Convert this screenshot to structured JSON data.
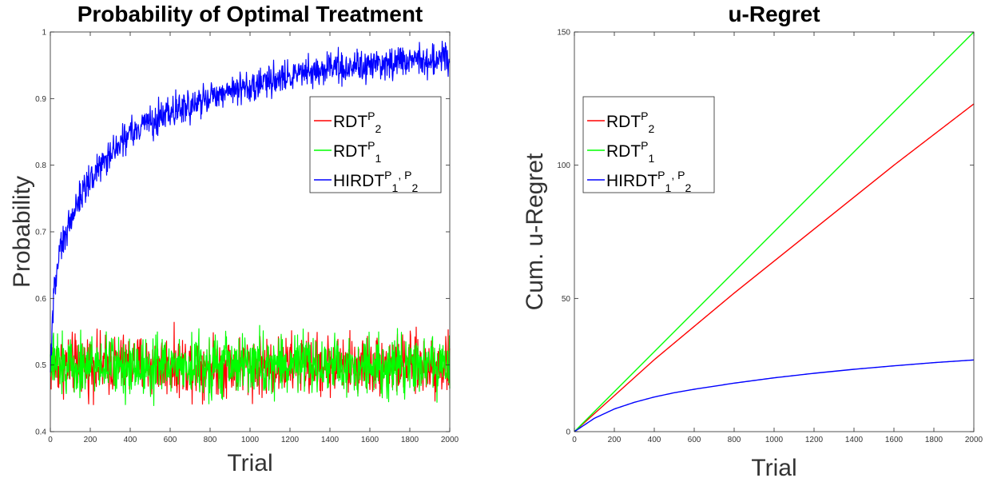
{
  "chart_data": [
    {
      "type": "line",
      "title": "Probability of Optimal Treatment",
      "xlabel": "Trial",
      "ylabel": "Probability",
      "xlim": [
        0,
        2000
      ],
      "ylim": [
        0.4,
        1.0
      ],
      "xticks": [
        "0",
        "200",
        "400",
        "600",
        "800",
        "1000",
        "1200",
        "1400",
        "1600",
        "1800",
        "2000"
      ],
      "yticks": [
        "0.4",
        "0.5",
        "0.6",
        "0.7",
        "0.8",
        "0.9",
        "1"
      ],
      "grid": false,
      "legend_position": "right-middle",
      "legend": [
        {
          "base": "RDT",
          "sup": "P",
          "sub": "2",
          "tail": "",
          "color": "#ff0000"
        },
        {
          "base": "RDT",
          "sup": "P",
          "sub": "1",
          "tail": "",
          "color": "#00ff00"
        },
        {
          "base": "HIRDT",
          "sup": "P",
          "sub": "1",
          "tail": ", P",
          "sub2": "2",
          "color": "#0000ff"
        }
      ],
      "series": [
        {
          "color": "#ff0000",
          "noise": 0.022,
          "x": [
            0,
            2000
          ],
          "y": [
            0.5,
            0.5
          ]
        },
        {
          "color": "#00ff00",
          "noise": 0.022,
          "x": [
            0,
            2000
          ],
          "y": [
            0.5,
            0.5
          ]
        },
        {
          "color": "#0000ff",
          "noise": 0.012,
          "x": [
            0,
            20,
            50,
            100,
            200,
            300,
            400,
            500,
            600,
            700,
            800,
            900,
            1000,
            1100,
            1200,
            1300,
            1400,
            1500,
            1600,
            1700,
            1800,
            1900,
            2000
          ],
          "y": [
            0.5,
            0.62,
            0.67,
            0.72,
            0.78,
            0.82,
            0.845,
            0.865,
            0.88,
            0.89,
            0.9,
            0.91,
            0.918,
            0.925,
            0.932,
            0.938,
            0.943,
            0.947,
            0.95,
            0.953,
            0.956,
            0.958,
            0.96
          ]
        }
      ]
    },
    {
      "type": "line",
      "title": "u-Regret",
      "xlabel": "Trial",
      "ylabel": "Cum. u-Regret",
      "xlim": [
        0,
        2000
      ],
      "ylim": [
        0,
        150
      ],
      "xticks": [
        "0",
        "200",
        "400",
        "600",
        "800",
        "1000",
        "1200",
        "1400",
        "1600",
        "1800",
        "2000"
      ],
      "yticks": [
        "0",
        "50",
        "100",
        "150"
      ],
      "grid": false,
      "legend_position": "top-left",
      "legend": [
        {
          "base": "RDT",
          "sup": "P",
          "sub": "2",
          "tail": "",
          "color": "#ff0000"
        },
        {
          "base": "RDT",
          "sup": "P",
          "sub": "1",
          "tail": "",
          "color": "#00ff00"
        },
        {
          "base": "HIRDT",
          "sup": "P",
          "sub": "1",
          "tail": ", P",
          "sub2": "2",
          "color": "#0000ff"
        }
      ],
      "series": [
        {
          "color": "#ff0000",
          "x": [
            0,
            400,
            800,
            1200,
            1600,
            2000
          ],
          "y": [
            0,
            27,
            52,
            76,
            100,
            123
          ]
        },
        {
          "color": "#00ff00",
          "x": [
            0,
            400,
            800,
            1200,
            1600,
            2000
          ],
          "y": [
            0,
            30,
            60,
            90,
            120,
            150
          ]
        },
        {
          "color": "#0000ff",
          "x": [
            0,
            100,
            200,
            300,
            400,
            500,
            600,
            800,
            1000,
            1200,
            1400,
            1600,
            1800,
            2000
          ],
          "y": [
            0,
            5,
            8.5,
            11,
            13,
            14.6,
            15.9,
            18.2,
            20.2,
            21.9,
            23.4,
            24.7,
            25.9,
            26.9
          ]
        }
      ]
    }
  ]
}
